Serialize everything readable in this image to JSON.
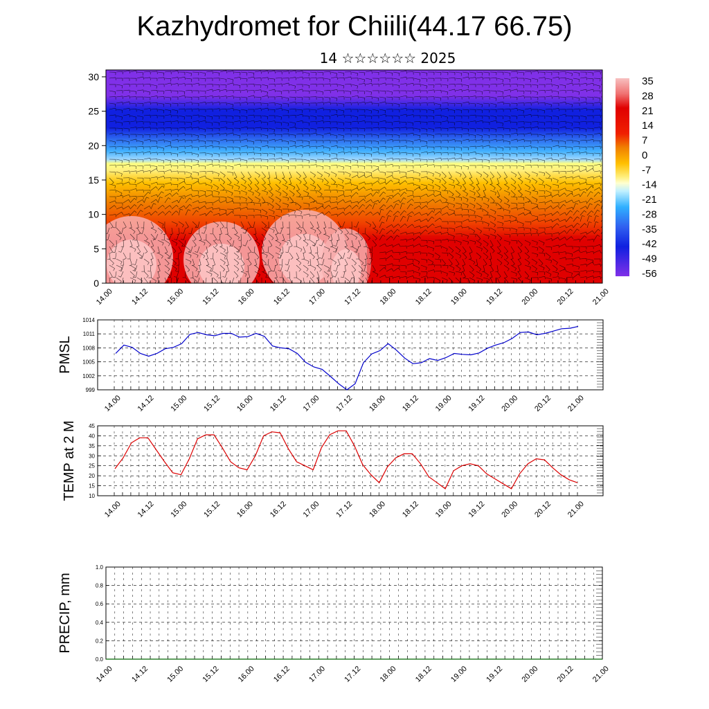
{
  "header": {
    "title": "Kazhydromet for Chiili(44.17 66.75)",
    "subtitle": "14 ☆☆☆☆☆☆ 2025"
  },
  "chart_data": [
    {
      "type": "heatmap",
      "title": "",
      "xlabel": "",
      "ylabel": "",
      "x_tick_labels": [
        "14.00",
        "14.12",
        "15.00",
        "15.12",
        "16.00",
        "16.12",
        "17.00",
        "17.12",
        "18.00",
        "18.12",
        "19.00",
        "19.12",
        "20.00",
        "20.12",
        "21.00"
      ],
      "y_ticks": [
        0,
        5,
        10,
        15,
        20,
        25,
        30
      ],
      "ylim": [
        0,
        31
      ],
      "colorbar": {
        "labels": [
          "35",
          "28",
          "21",
          "14",
          "7",
          "0",
          "-7",
          "-14",
          "-21",
          "-28",
          "-35",
          "-42",
          "-49",
          "-56"
        ],
        "colors": {
          "hot": "#f7b0b0",
          "red": "#e00000",
          "orange": "#f08000",
          "yellow": "#fff080",
          "lightblue": "#a0d8ff",
          "blue": "#1020e0",
          "violet": "#8030e8"
        }
      },
      "overlay": "wind-barbs"
    },
    {
      "type": "line",
      "ylabel": "PMSL",
      "x_tick_labels": [
        "14.00",
        "14.12",
        "15.00",
        "15.12",
        "16.00",
        "16.12",
        "17.00",
        "17.12",
        "18.00",
        "18.12",
        "19.00",
        "19.12",
        "20.00",
        "20.12",
        "21.00"
      ],
      "y_tick_labels": [
        "999",
        "1002",
        "1005",
        "1008",
        "1011",
        "1014"
      ],
      "ylim": [
        999,
        1014
      ],
      "grid": true,
      "series": [
        {
          "color": "#0000cc",
          "values": [
            1006.8,
            1008.6,
            1008.1,
            1006.8,
            1006.2,
            1006.8,
            1007.8,
            1008.1,
            1008.9,
            1010.9,
            1011.3,
            1010.8,
            1010.6,
            1011.1,
            1011.1,
            1010.3,
            1010.4,
            1011.1,
            1010.5,
            1008.4,
            1008.0,
            1007.8,
            1006.8,
            1004.9,
            1003.9,
            1003.4,
            1001.9,
            1000.3,
            999.0,
            1000.3,
            1004.8,
            1006.7,
            1007.4,
            1008.9,
            1007.5,
            1005.8,
            1004.6,
            1004.8,
            1005.7,
            1005.3,
            1005.9,
            1006.8,
            1006.6,
            1006.5,
            1006.9,
            1007.9,
            1008.6,
            1009.1,
            1010.0,
            1011.3,
            1011.4,
            1010.8,
            1011.1,
            1011.6,
            1012.1,
            1012.2,
            1012.6
          ]
        }
      ]
    },
    {
      "type": "line",
      "ylabel": "TEMP at 2 M",
      "x_tick_labels": [
        "14.00",
        "14.12",
        "15.00",
        "15.12",
        "16.00",
        "16.12",
        "17.00",
        "17.12",
        "18.00",
        "18.12",
        "19.00",
        "19.12",
        "20.00",
        "20.12",
        "21.00"
      ],
      "y_tick_labels": [
        "10",
        "15",
        "20",
        "25",
        "30",
        "35",
        "40",
        "45"
      ],
      "ylim": [
        10,
        45
      ],
      "grid": true,
      "series": [
        {
          "color": "#dd0000",
          "values": [
            23.5,
            29,
            36.5,
            39,
            39,
            33,
            27,
            21.5,
            20.5,
            28.5,
            38.5,
            40.5,
            40.5,
            34,
            27,
            24,
            23,
            30,
            40,
            42,
            41.5,
            33.5,
            27,
            25,
            23,
            34,
            40.5,
            42.5,
            42.5,
            35,
            25.5,
            20.5,
            16.5,
            24.5,
            29,
            31,
            31,
            26,
            19.5,
            16.5,
            13.5,
            22.5,
            25,
            26,
            25,
            21,
            18.5,
            16,
            13.5,
            21,
            26,
            28.5,
            28,
            24,
            20.5,
            18,
            16.5
          ]
        }
      ]
    },
    {
      "type": "line",
      "ylabel": "PRECIP, mm",
      "x_tick_labels": [
        "14.00",
        "14.12",
        "15.00",
        "15.12",
        "16.00",
        "16.12",
        "17.00",
        "17.12",
        "18.00",
        "18.12",
        "19.00",
        "19.12",
        "20.00",
        "20.12",
        "21.00"
      ],
      "y_tick_labels": [
        "0.0",
        "0.2",
        "0.4",
        "0.6",
        "0.8",
        "1.0"
      ],
      "ylim": [
        0,
        1
      ],
      "grid": true,
      "series": [
        {
          "color": "#006600",
          "values": [
            0,
            0,
            0,
            0,
            0,
            0,
            0,
            0,
            0,
            0,
            0,
            0,
            0,
            0,
            0,
            0,
            0,
            0,
            0,
            0,
            0,
            0,
            0,
            0,
            0,
            0,
            0,
            0,
            0,
            0,
            0,
            0,
            0,
            0,
            0,
            0,
            0,
            0,
            0,
            0,
            0,
            0,
            0,
            0,
            0,
            0,
            0,
            0,
            0,
            0,
            0,
            0,
            0,
            0,
            0,
            0,
            0
          ]
        }
      ]
    }
  ]
}
